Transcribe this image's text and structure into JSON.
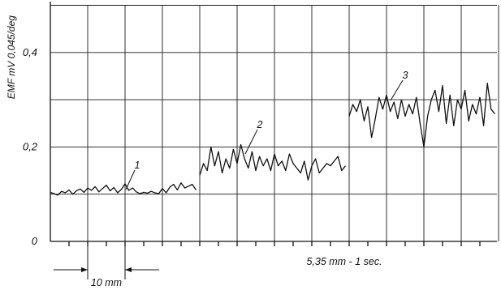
{
  "chart_data": {
    "type": "line",
    "title": "",
    "ylabel": "EMF mV 0,045/deg",
    "xlabel": "5,35 mm - 1 sec.",
    "ylim": [
      0,
      0.5
    ],
    "y_ticks": [
      {
        "value": 0,
        "label": "0"
      },
      {
        "value": 0.2,
        "label": "0,2"
      },
      {
        "value": 0.4,
        "label": "0,4"
      }
    ],
    "x_range_mm": [
      0,
      120
    ],
    "grid": true,
    "scale_bar": {
      "label": "10 mm",
      "from_mm": 10,
      "to_mm": 20
    },
    "series": [
      {
        "name": "1",
        "x_mm": [
          0,
          1,
          2,
          3,
          4,
          5,
          6,
          7,
          8,
          9,
          10,
          11,
          12,
          13,
          14,
          15,
          16,
          17,
          18,
          19,
          20,
          21,
          22,
          23,
          24,
          25,
          26,
          27,
          28,
          29,
          30,
          31,
          32,
          33,
          34,
          35,
          36,
          37,
          38,
          39
        ],
        "values": [
          0.104,
          0.101,
          0.098,
          0.106,
          0.103,
          0.109,
          0.1,
          0.107,
          0.111,
          0.104,
          0.113,
          0.108,
          0.116,
          0.105,
          0.112,
          0.119,
          0.107,
          0.114,
          0.103,
          0.11,
          0.122,
          0.108,
          0.113,
          0.105,
          0.101,
          0.104,
          0.102,
          0.106,
          0.103,
          0.101,
          0.112,
          0.103,
          0.115,
          0.121,
          0.109,
          0.124,
          0.113,
          0.117,
          0.121,
          0.109
        ]
      },
      {
        "name": "2",
        "x_mm": [
          40,
          41,
          42,
          43,
          44,
          45,
          46,
          47,
          48,
          49,
          50,
          51,
          52,
          53,
          54,
          55,
          56,
          57,
          58,
          59,
          60,
          61,
          62,
          63,
          64,
          65,
          66,
          67,
          68,
          69,
          70,
          71,
          72,
          73,
          74,
          75,
          76,
          77,
          78,
          79
        ],
        "values": [
          0.14,
          0.165,
          0.15,
          0.2,
          0.16,
          0.19,
          0.145,
          0.175,
          0.155,
          0.195,
          0.165,
          0.205,
          0.175,
          0.155,
          0.19,
          0.15,
          0.18,
          0.16,
          0.175,
          0.15,
          0.185,
          0.16,
          0.17,
          0.15,
          0.185,
          0.165,
          0.155,
          0.145,
          0.17,
          0.13,
          0.16,
          0.175,
          0.145,
          0.155,
          0.165,
          0.16,
          0.17,
          0.18,
          0.15,
          0.16
        ]
      },
      {
        "name": "3",
        "x_mm": [
          80,
          81,
          82,
          83,
          84,
          85,
          86,
          87,
          88,
          89,
          90,
          91,
          92,
          93,
          94,
          95,
          96,
          97,
          98,
          99,
          100,
          101,
          102,
          103,
          104,
          105,
          106,
          107,
          108,
          109,
          110,
          111,
          112,
          113,
          114,
          115,
          116,
          117,
          118,
          119
        ],
        "values": [
          0.265,
          0.29,
          0.275,
          0.3,
          0.255,
          0.285,
          0.22,
          0.26,
          0.305,
          0.28,
          0.31,
          0.275,
          0.295,
          0.26,
          0.3,
          0.265,
          0.29,
          0.27,
          0.305,
          0.25,
          0.2,
          0.265,
          0.3,
          0.32,
          0.275,
          0.33,
          0.25,
          0.31,
          0.245,
          0.3,
          0.28,
          0.32,
          0.255,
          0.29,
          0.27,
          0.305,
          0.245,
          0.335,
          0.28,
          0.27
        ]
      }
    ],
    "annotations": [
      {
        "text": "1",
        "series": "1"
      },
      {
        "text": "2",
        "series": "2"
      },
      {
        "text": "3",
        "series": "3"
      }
    ]
  }
}
